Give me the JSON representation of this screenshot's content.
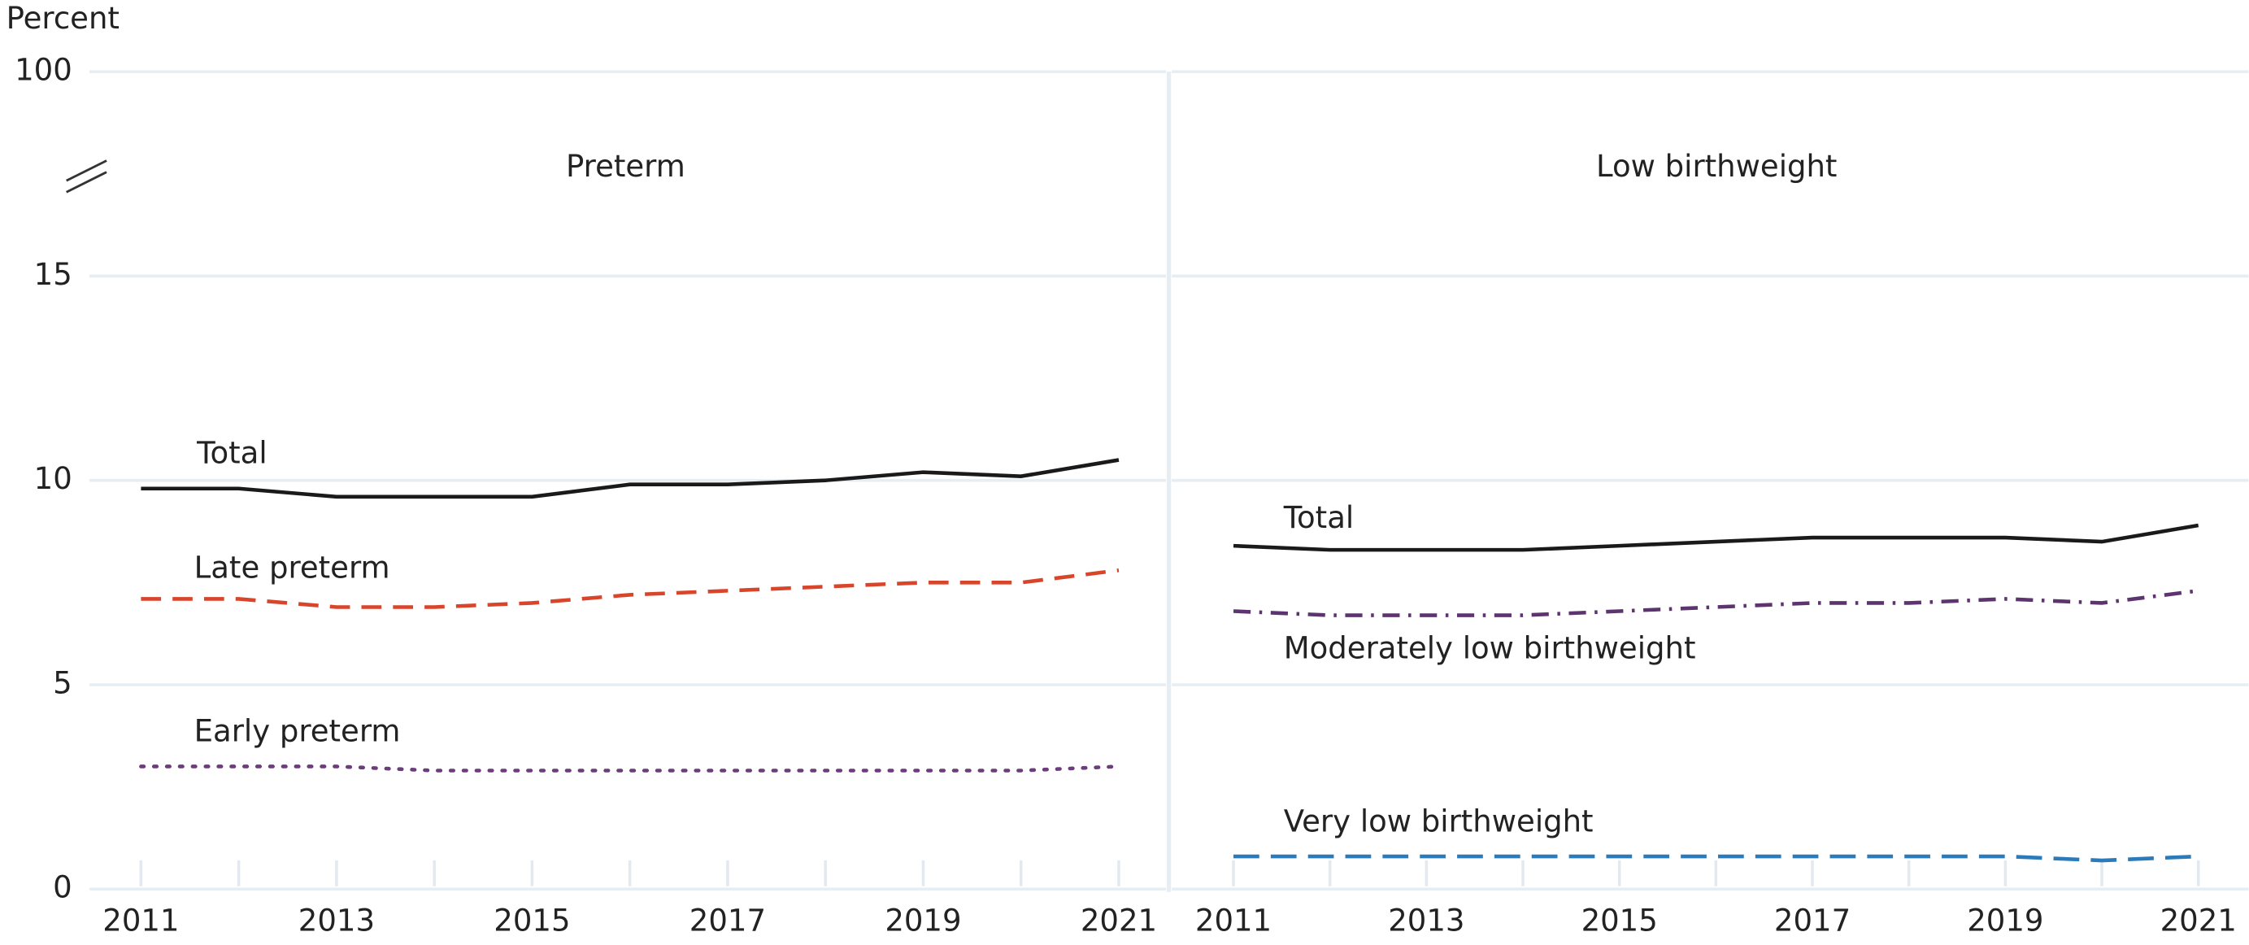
{
  "chart_data": [
    {
      "type": "line",
      "title": "Preterm",
      "y_label": "Percent",
      "x": [
        2011,
        2012,
        2013,
        2014,
        2015,
        2016,
        2017,
        2018,
        2019,
        2020,
        2021
      ],
      "xlim": [
        2011,
        2021
      ],
      "xticks": [
        2011,
        2013,
        2015,
        2017,
        2019,
        2021
      ],
      "ylim": [
        0,
        100
      ],
      "yticks": [
        0,
        5,
        10,
        15,
        100
      ],
      "axis_break": true,
      "grid": true,
      "series": [
        {
          "name": "Total",
          "color": "#1a1a1a",
          "style": "solid",
          "values": [
            9.8,
            9.8,
            9.6,
            9.6,
            9.6,
            9.9,
            9.9,
            10.0,
            10.2,
            10.1,
            10.5
          ]
        },
        {
          "name": "Late preterm",
          "color": "#d9452b",
          "style": "dashed",
          "values": [
            7.1,
            7.1,
            6.9,
            6.9,
            7.0,
            7.2,
            7.3,
            7.4,
            7.5,
            7.5,
            7.8
          ]
        },
        {
          "name": "Early preterm",
          "color": "#6b3d7a",
          "style": "dotted",
          "values": [
            3.0,
            3.0,
            3.0,
            2.9,
            2.9,
            2.9,
            2.9,
            2.9,
            2.9,
            2.9,
            3.0
          ]
        }
      ]
    },
    {
      "type": "line",
      "title": "Low birthweight",
      "x": [
        2011,
        2012,
        2013,
        2014,
        2015,
        2016,
        2017,
        2018,
        2019,
        2020,
        2021
      ],
      "xlim": [
        2011,
        2021
      ],
      "xticks": [
        2011,
        2013,
        2015,
        2017,
        2019,
        2021
      ],
      "ylim": [
        0,
        100
      ],
      "yticks": [
        0,
        5,
        10,
        15,
        100
      ],
      "axis_break": true,
      "grid": true,
      "series": [
        {
          "name": "Total",
          "color": "#1a1a1a",
          "style": "solid",
          "values": [
            8.4,
            8.3,
            8.3,
            8.3,
            8.4,
            8.5,
            8.6,
            8.6,
            8.6,
            8.5,
            8.9
          ]
        },
        {
          "name": "Moderately low birthweight",
          "color": "#5e3470",
          "style": "dashdot",
          "values": [
            6.8,
            6.7,
            6.7,
            6.7,
            6.8,
            6.9,
            7.0,
            7.0,
            7.1,
            7.0,
            7.3
          ]
        },
        {
          "name": "Very low birthweight",
          "color": "#2b7bba",
          "style": "longdash",
          "values": [
            0.8,
            0.8,
            0.8,
            0.8,
            0.8,
            0.8,
            0.8,
            0.8,
            0.8,
            0.7,
            0.8
          ]
        }
      ]
    }
  ]
}
